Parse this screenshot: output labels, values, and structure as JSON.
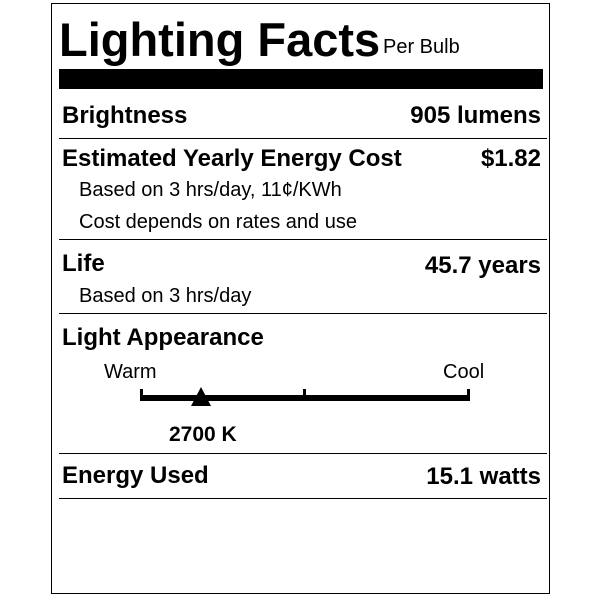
{
  "header": {
    "title": "Lighting Facts",
    "subtitle": "Per Bulb"
  },
  "brightness": {
    "label": "Brightness",
    "value": "905 lumens"
  },
  "cost": {
    "label": "Estimated Yearly Energy Cost",
    "value": "$1.82",
    "note1": "Based on 3 hrs/day, 11¢/KWh",
    "note2": "Cost depends on rates and use"
  },
  "life": {
    "label": "Life",
    "value": "45.7 years",
    "note": "Based on 3 hrs/day"
  },
  "appearance": {
    "label": "Light Appearance",
    "warm": "Warm",
    "cool": "Cool",
    "value": "2700 K",
    "marker_fraction": 0.185
  },
  "energy": {
    "label": "Energy Used",
    "value": "15.1 watts"
  }
}
